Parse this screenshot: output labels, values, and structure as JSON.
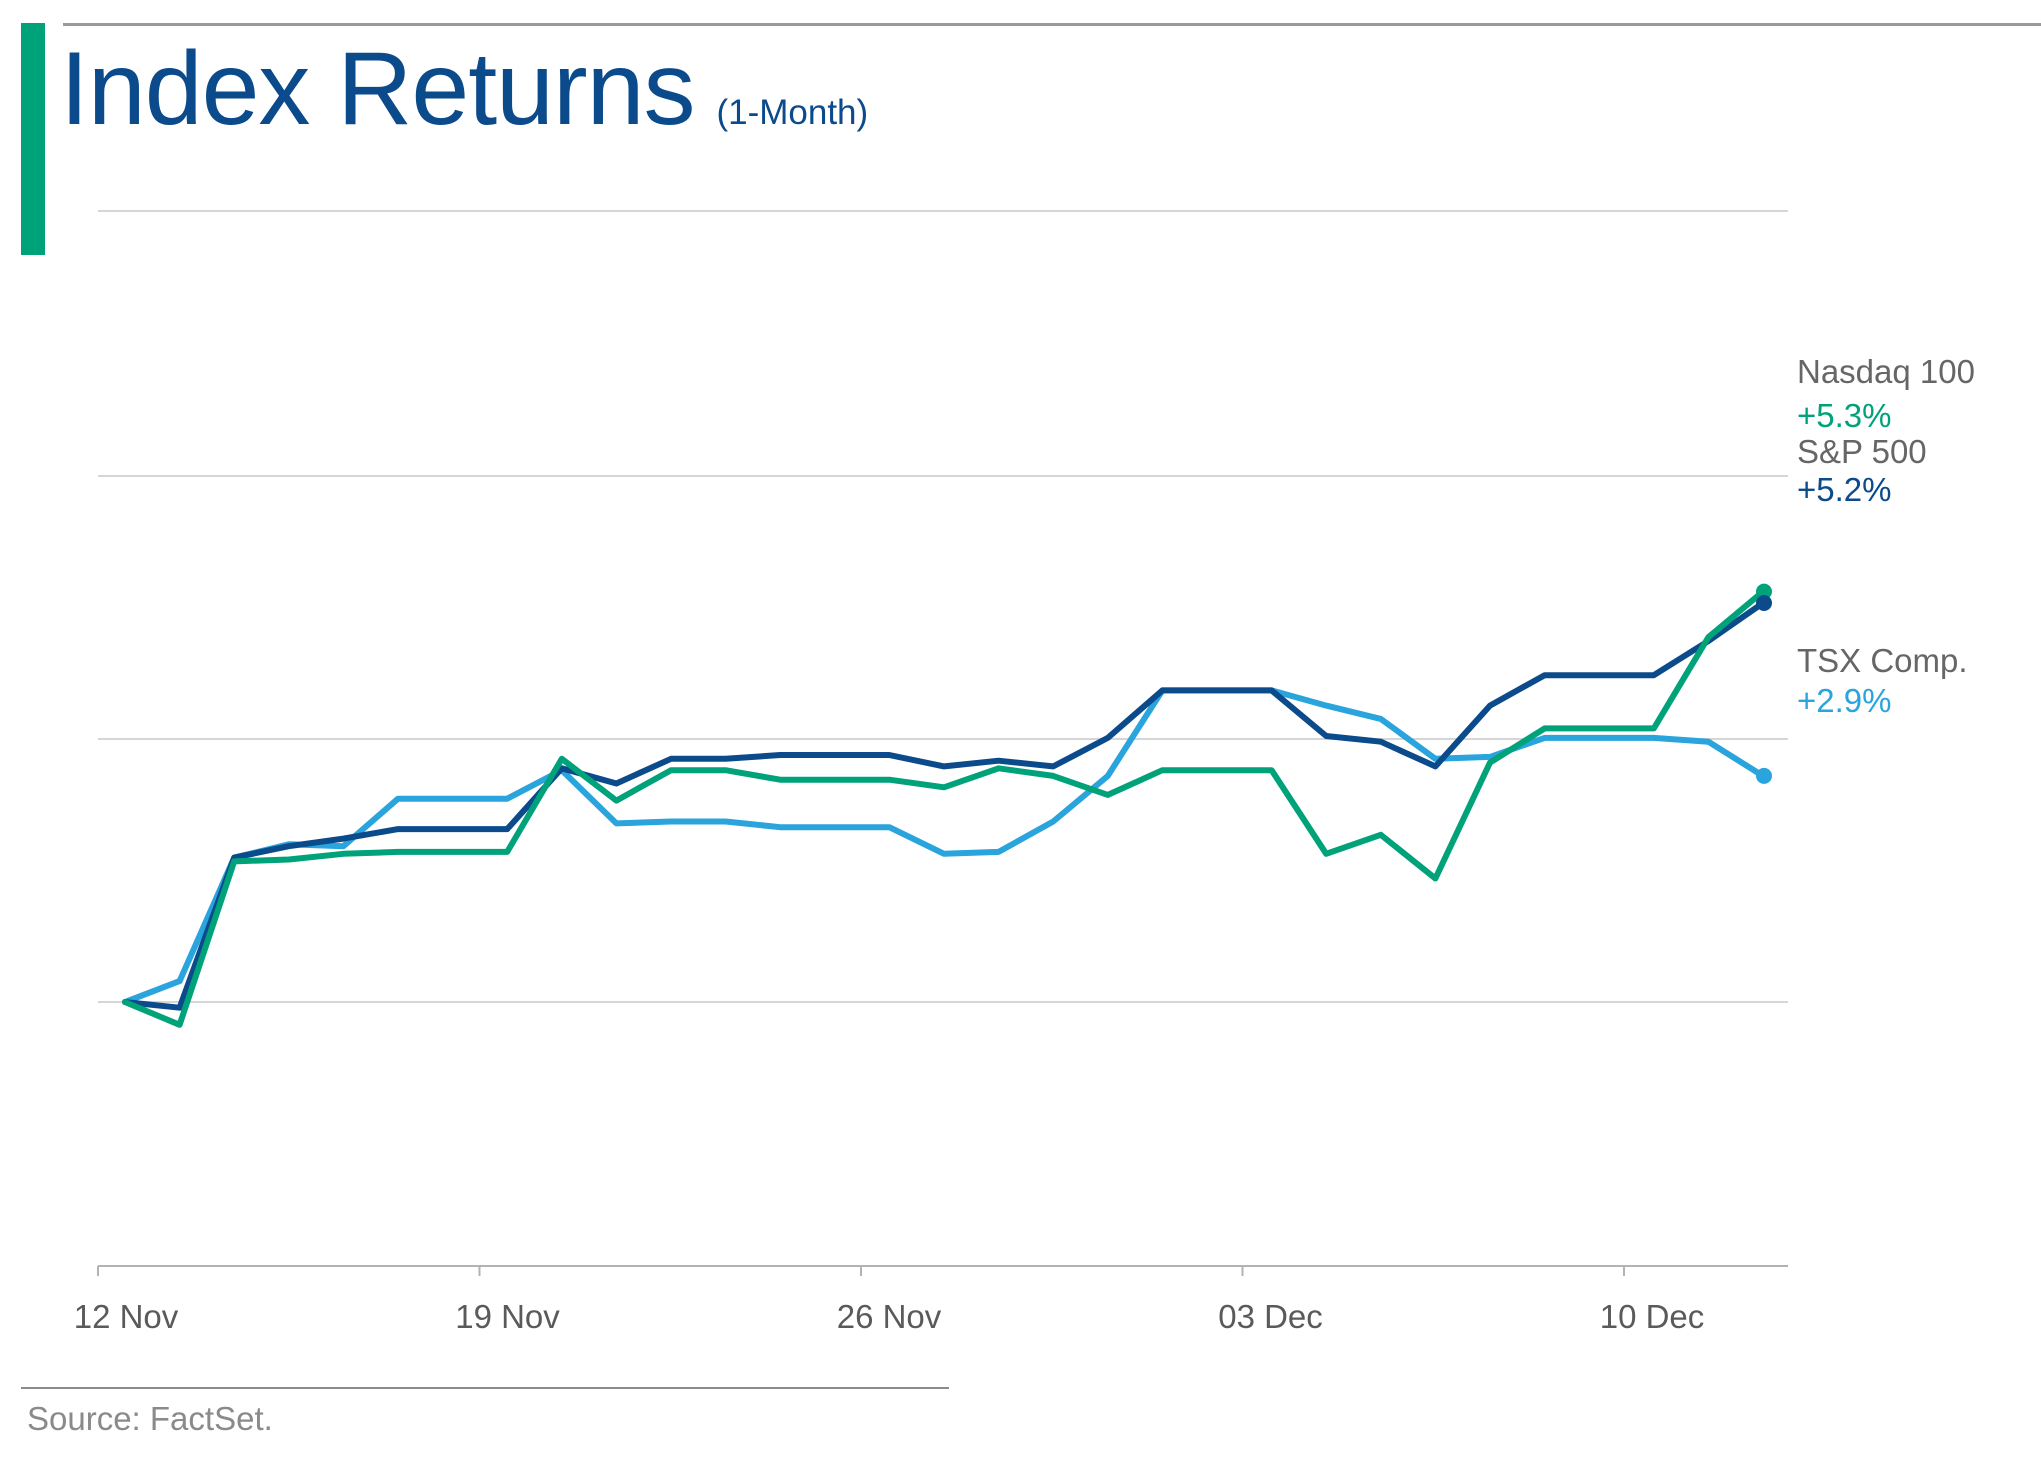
{
  "header": {
    "title": "Index Returns",
    "subtitle": "(1-Month)"
  },
  "footer": {
    "source": "Source: FactSet."
  },
  "colors": {
    "nasdaq": "#00a27a",
    "sp500": "#0b4a8b",
    "tsx": "#29a4dc",
    "label_grey": "#666666",
    "grid": "#d6d6d6",
    "axis": "#b3b3b3"
  },
  "chart_data": {
    "type": "line",
    "title": "Index Returns",
    "subtitle": "(1-Month)",
    "x_labels": [
      "12 Nov",
      "19 Nov",
      "26 Nov",
      "03 Dec",
      "10 Dec"
    ],
    "y_ticks_labeled": false,
    "grid": "horizontal",
    "x": [
      "2024-11-12",
      "2024-11-13",
      "2024-11-14",
      "2024-11-15",
      "2024-11-16",
      "2024-11-17",
      "2024-11-18",
      "2024-11-19",
      "2024-11-20",
      "2024-11-21",
      "2024-11-22",
      "2024-11-23",
      "2024-11-24",
      "2024-11-25",
      "2024-11-26",
      "2024-11-27",
      "2024-11-28",
      "2024-11-29",
      "2024-11-30",
      "2024-12-01",
      "2024-12-02",
      "2024-12-03",
      "2024-12-04",
      "2024-12-05",
      "2024-12-06",
      "2024-12-07",
      "2024-12-08",
      "2024-12-09",
      "2024-12-10",
      "2024-12-11",
      "2024-12-12"
    ],
    "series": [
      {
        "name": "Nasdaq 100",
        "color": "#00a27a",
        "end_label": "+5.3%",
        "values": [
          0.0,
          -0.6,
          3.7,
          3.75,
          3.9,
          3.95,
          3.95,
          3.95,
          6.4,
          5.3,
          6.1,
          6.1,
          5.85,
          5.85,
          5.85,
          5.65,
          6.15,
          5.95,
          5.45,
          6.1,
          6.1,
          6.1,
          3.9,
          4.4,
          3.25,
          6.3,
          7.2,
          7.2,
          7.2,
          9.6,
          10.8
        ]
      },
      {
        "name": "S&P 500",
        "color": "#0b4a8b",
        "end_label": "+5.2%",
        "values": [
          0.0,
          -0.15,
          3.8,
          4.1,
          4.3,
          4.55,
          4.55,
          4.55,
          6.15,
          5.75,
          6.4,
          6.4,
          6.5,
          6.5,
          6.5,
          6.2,
          6.35,
          6.2,
          6.95,
          8.2,
          8.2,
          8.2,
          7.0,
          6.85,
          6.2,
          7.8,
          8.6,
          8.6,
          8.6,
          9.5,
          10.5
        ]
      },
      {
        "name": "TSX Comp.",
        "color": "#29a4dc",
        "end_label": "+2.9%",
        "values": [
          0.0,
          0.55,
          3.8,
          4.15,
          4.1,
          5.35,
          5.35,
          5.35,
          6.1,
          4.7,
          4.75,
          4.75,
          4.6,
          4.6,
          4.6,
          3.9,
          3.95,
          4.75,
          5.95,
          8.2,
          8.2,
          8.2,
          7.8,
          7.45,
          6.4,
          6.45,
          6.95,
          6.95,
          6.95,
          6.85,
          5.95
        ]
      }
    ]
  }
}
